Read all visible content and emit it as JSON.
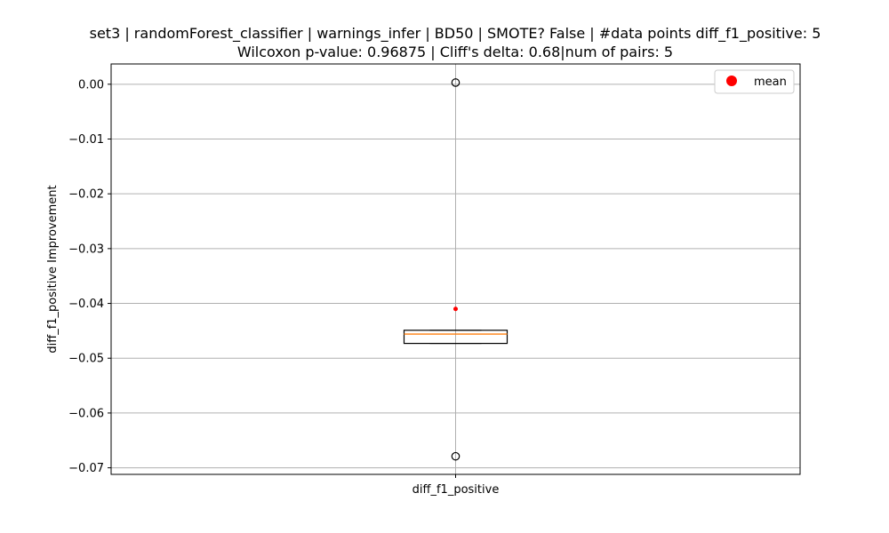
{
  "chart_data": {
    "type": "box",
    "title_line1": "set3 | randomForest_classifier | warnings_infer | BD50 | SMOTE? False | #data points diff_f1_positive: 5",
    "title_line2": "Wilcoxon p-value: 0.96875 | Cliff's delta: 0.68|num of pairs: 5",
    "xlabel": "",
    "ylabel": "diff_f1_positive Improvement",
    "categories": [
      "diff_f1_positive"
    ],
    "ylim": [
      -0.0712,
      0.0037
    ],
    "yticks": [
      0.0,
      -0.01,
      -0.02,
      -0.03,
      -0.04,
      -0.05,
      -0.06,
      -0.07
    ],
    "ytick_labels": [
      "0.00",
      "−0.01",
      "−0.02",
      "−0.03",
      "−0.04",
      "−0.05",
      "−0.06",
      "−0.07"
    ],
    "grid": true,
    "legend": {
      "position": "top-right",
      "entries": [
        {
          "label": "mean",
          "marker": "circle",
          "color": "#ff0000"
        }
      ]
    },
    "box": {
      "q1": -0.0473,
      "median": -0.0456,
      "q3": -0.0449,
      "whisker_low": -0.0473,
      "whisker_high": -0.0449,
      "mean": -0.041,
      "outliers": [
        0.0003,
        -0.0679
      ]
    },
    "colors": {
      "median": "#ff7f0e",
      "mean": "#ff0000",
      "grid": "#b0b0b0",
      "box": "#000000"
    }
  }
}
